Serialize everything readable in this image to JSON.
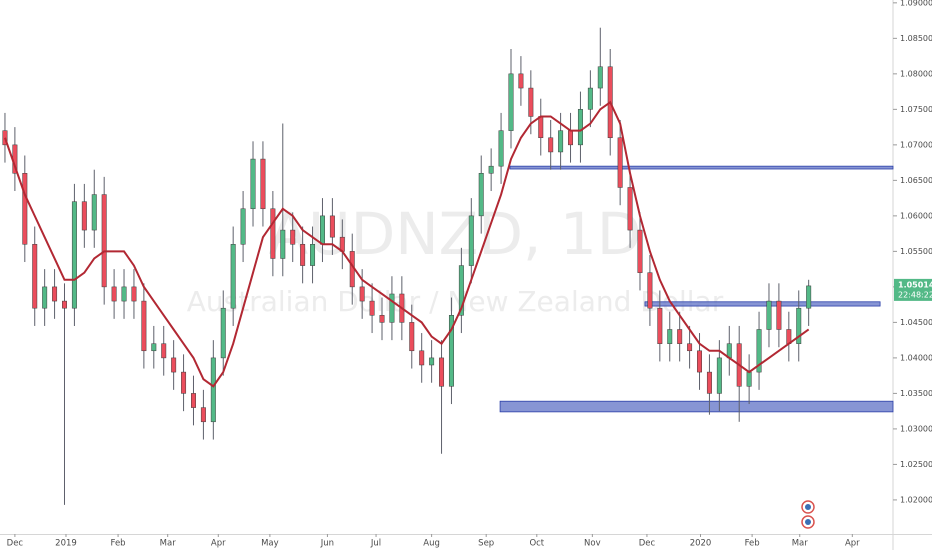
{
  "chart_data": {
    "type": "candlestick",
    "watermark": {
      "symbol": "AUDNZD, 1D",
      "description": "Australian Dollar / New Zealand Dollar"
    },
    "up_color": "#53b987",
    "down_color": "#eb4d5c",
    "wick_color": "#5d606b",
    "open": [
      1.072,
      1.07,
      1.066,
      1.056,
      1.047,
      1.05,
      1.048,
      1.047,
      1.062,
      1.058,
      1.063,
      1.05,
      1.048,
      1.05,
      1.048,
      1.041,
      1.042,
      1.04,
      1.038,
      1.035,
      1.033,
      1.031,
      1.04,
      1.047,
      1.056,
      1.061,
      1.068,
      1.061,
      1.054,
      1.058,
      1.056,
      1.053,
      1.056,
      1.06,
      1.057,
      1.055,
      1.05,
      1.048,
      1.046,
      1.045,
      1.049,
      1.045,
      1.041,
      1.039,
      1.04,
      1.036,
      1.046,
      1.053,
      1.06,
      1.066,
      1.067,
      1.072,
      1.08,
      1.078,
      1.074,
      1.071,
      1.069,
      1.072,
      1.07,
      1.075,
      1.078,
      1.081,
      1.071,
      1.064,
      1.058,
      1.052,
      1.047,
      1.042,
      1.044,
      1.042,
      1.041,
      1.038,
      1.035,
      1.04,
      1.042,
      1.036,
      1.038,
      1.044,
      1.048,
      1.044,
      1.042,
      1.047
    ],
    "high": [
      1.0745,
      1.0725,
      1.0685,
      1.0585,
      1.0525,
      1.0525,
      1.0505,
      1.0645,
      1.0645,
      1.0665,
      1.0655,
      1.0525,
      1.0525,
      1.0525,
      1.0505,
      1.0445,
      1.0445,
      1.0425,
      1.0405,
      1.0375,
      1.0355,
      1.0425,
      1.0495,
      1.0585,
      1.0635,
      1.0705,
      1.0705,
      1.0635,
      1.073,
      1.0605,
      1.0585,
      1.0585,
      1.0625,
      1.0625,
      1.0595,
      1.0575,
      1.0525,
      1.0505,
      1.0485,
      1.0515,
      1.0515,
      1.0475,
      1.0435,
      1.0425,
      1.0425,
      1.0485,
      1.0555,
      1.0625,
      1.0685,
      1.0695,
      1.0745,
      1.0835,
      1.0825,
      1.0805,
      1.0765,
      1.0735,
      1.0745,
      1.0745,
      1.0775,
      1.0805,
      1.0865,
      1.0835,
      1.0735,
      1.0665,
      1.0605,
      1.0545,
      1.0495,
      1.0465,
      1.0465,
      1.0445,
      1.0435,
      1.0405,
      1.0425,
      1.0445,
      1.0445,
      1.0405,
      1.0465,
      1.0505,
      1.0505,
      1.0465,
      1.0495,
      1.051
    ],
    "low": [
      1.0675,
      1.0635,
      1.0535,
      1.0445,
      1.0445,
      1.0455,
      1.0193,
      1.0445,
      1.0555,
      1.0555,
      1.0475,
      1.0455,
      1.0455,
      1.0455,
      1.0385,
      1.0385,
      1.0375,
      1.0355,
      1.0325,
      1.0305,
      1.0285,
      1.0285,
      1.0375,
      1.0445,
      1.0535,
      1.0585,
      1.0585,
      1.0515,
      1.0515,
      1.0535,
      1.0505,
      1.0505,
      1.0535,
      1.0545,
      1.0525,
      1.0475,
      1.0455,
      1.0435,
      1.0425,
      1.0425,
      1.0425,
      1.0385,
      1.0365,
      1.0365,
      1.0265,
      1.0335,
      1.0435,
      1.0505,
      1.0575,
      1.0635,
      1.0645,
      1.0695,
      1.0755,
      1.0715,
      1.0685,
      1.0665,
      1.0665,
      1.0675,
      1.0675,
      1.0725,
      1.0755,
      1.0685,
      1.0615,
      1.0555,
      1.0495,
      1.0445,
      1.0395,
      1.0395,
      1.0395,
      1.0385,
      1.0355,
      1.032,
      1.0325,
      1.0375,
      1.031,
      1.0335,
      1.0355,
      1.0415,
      1.0415,
      1.0395,
      1.0395,
      1.0445
    ],
    "close": [
      1.07,
      1.066,
      1.056,
      1.047,
      1.05,
      1.048,
      1.047,
      1.062,
      1.058,
      1.063,
      1.05,
      1.048,
      1.05,
      1.048,
      1.041,
      1.042,
      1.04,
      1.038,
      1.035,
      1.033,
      1.031,
      1.04,
      1.047,
      1.056,
      1.061,
      1.068,
      1.061,
      1.054,
      1.058,
      1.056,
      1.053,
      1.056,
      1.06,
      1.057,
      1.055,
      1.05,
      1.048,
      1.046,
      1.045,
      1.049,
      1.045,
      1.041,
      1.039,
      1.04,
      1.036,
      1.046,
      1.053,
      1.06,
      1.066,
      1.067,
      1.072,
      1.08,
      1.078,
      1.074,
      1.071,
      1.069,
      1.072,
      1.07,
      1.075,
      1.078,
      1.081,
      1.071,
      1.064,
      1.058,
      1.052,
      1.047,
      1.042,
      1.044,
      1.042,
      1.041,
      1.038,
      1.035,
      1.04,
      1.042,
      1.036,
      1.038,
      1.044,
      1.048,
      1.044,
      1.042,
      1.047,
      1.05014
    ],
    "countdown": "22:48:22",
    "ma": {
      "color": "#b22833",
      "values": [
        1.071,
        1.067,
        1.063,
        1.06,
        1.057,
        1.054,
        1.051,
        1.051,
        1.052,
        1.054,
        1.055,
        1.055,
        1.055,
        1.053,
        1.05,
        1.048,
        1.046,
        1.044,
        1.042,
        1.04,
        1.037,
        1.036,
        1.038,
        1.042,
        1.047,
        1.052,
        1.057,
        1.059,
        1.061,
        1.06,
        1.058,
        1.057,
        1.056,
        1.056,
        1.055,
        1.053,
        1.051,
        1.05,
        1.049,
        1.048,
        1.047,
        1.046,
        1.045,
        1.043,
        1.042,
        1.044,
        1.047,
        1.051,
        1.055,
        1.059,
        1.063,
        1.068,
        1.071,
        1.073,
        1.074,
        1.074,
        1.073,
        1.072,
        1.072,
        1.073,
        1.075,
        1.076,
        1.073,
        1.066,
        1.06,
        1.055,
        1.051,
        1.048,
        1.046,
        1.044,
        1.042,
        1.041,
        1.041,
        1.04,
        1.039,
        1.038,
        1.039,
        1.04,
        1.041,
        1.042,
        1.043,
        1.044
      ]
    },
    "zones": [
      {
        "from": 51.4,
        "to": 90,
        "top": 1.067,
        "bottom": 1.0666
      },
      {
        "from": 65.0,
        "to": 88.7,
        "top": 1.0479,
        "bottom": 1.0473
      },
      {
        "from": 50.4,
        "to": 90,
        "top": 1.0339,
        "bottom": 1.0324
      }
    ],
    "zone_color": "#7282cc",
    "xlim": [
      0,
      90
    ],
    "xticks": [
      {
        "value": 1.5,
        "label": "Dec"
      },
      {
        "value": 6.65,
        "label": "2019"
      },
      {
        "value": 11.9,
        "label": "Feb"
      },
      {
        "value": 16.9,
        "label": "Mar"
      },
      {
        "value": 22.0,
        "label": "Apr"
      },
      {
        "value": 27.2,
        "label": "May"
      },
      {
        "value": 33.0,
        "label": "Jun"
      },
      {
        "value": 37.9,
        "label": "Jul"
      },
      {
        "value": 43.5,
        "label": "Aug"
      },
      {
        "value": 49.0,
        "label": "Sep"
      },
      {
        "value": 54.1,
        "label": "Oct"
      },
      {
        "value": 59.7,
        "label": "Nov"
      },
      {
        "value": 65.2,
        "label": "Dec"
      },
      {
        "value": 70.6,
        "label": "2020"
      },
      {
        "value": 75.8,
        "label": "Feb"
      },
      {
        "value": 80.6,
        "label": "Mar"
      },
      {
        "value": 85.9,
        "label": "Apr"
      }
    ],
    "ylim": [
      1.0152,
      1.0904
    ],
    "yticks": [
      {
        "value": 1.02,
        "label": "1.02000"
      },
      {
        "value": 1.025,
        "label": "1.02500"
      },
      {
        "value": 1.03,
        "label": "1.03000"
      },
      {
        "value": 1.035,
        "label": "1.03500"
      },
      {
        "value": 1.04,
        "label": "1.04000"
      },
      {
        "value": 1.045,
        "label": "1.04500"
      },
      {
        "value": 1.05,
        "label": "1.05000"
      },
      {
        "value": 1.055,
        "label": "1.05500"
      },
      {
        "value": 1.06,
        "label": "1.06000"
      },
      {
        "value": 1.065,
        "label": "1.06500"
      },
      {
        "value": 1.07,
        "label": "1.07000"
      },
      {
        "value": 1.075,
        "label": "1.07500"
      },
      {
        "value": 1.08,
        "label": "1.08000"
      },
      {
        "value": 1.085,
        "label": "1.08500"
      },
      {
        "value": 1.09,
        "label": "1.09000"
      }
    ]
  }
}
